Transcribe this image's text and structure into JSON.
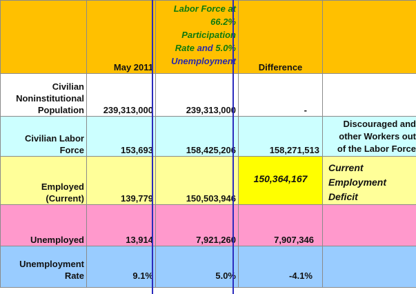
{
  "header": {
    "col_a": "",
    "col_b": "May 2011",
    "col_c_line1": "Labor Force at",
    "col_c_line2": "66.2%",
    "col_c_line3": "Participation",
    "col_c_line4a": "Rate",
    "col_c_line4b": "and",
    "col_c_line4c": "5.0%",
    "col_c_line5": "Unemployment",
    "col_d": "Difference",
    "col_e": ""
  },
  "rows": [
    {
      "label_lines": [
        "Civilian",
        "Noninstitutional",
        "Population"
      ],
      "may2011": "239,313,000",
      "scenario": "239,313,000",
      "difference": "-",
      "note": ""
    },
    {
      "label_lines": [
        "Civilian Labor",
        "Force"
      ],
      "may2011": "153,693",
      "scenario": "158,425,206",
      "difference": "158,271,513",
      "note_lines": [
        "Discouraged and",
        "other Workers out",
        "of the Labor Force"
      ]
    },
    {
      "label_lines": [
        "Employed",
        "(Current)"
      ],
      "may2011": "139,779",
      "scenario": "150,503,946",
      "difference": "150,364,167",
      "note_lines": [
        "Current",
        "Employment",
        "Deficit"
      ]
    },
    {
      "label_lines": [
        "Unemployed"
      ],
      "may2011": "13,914",
      "scenario": "7,921,260",
      "difference": "7,907,346",
      "note": ""
    },
    {
      "label_lines": [
        "Unemployment",
        "Rate"
      ],
      "may2011": "9.1%",
      "scenario": "5.0%",
      "difference": "-4.1%",
      "note": ""
    }
  ],
  "colors": {
    "header_bg": "#ffc000",
    "population_bg": "#ffffff",
    "labor_force_bg": "#ccffff",
    "employed_bg": "#ffff99",
    "deficit_highlight": "#ffff00",
    "unemployed_bg": "#ff99cc",
    "rate_bg": "#99ccff",
    "scenario_column_outline": "#2b2bbd",
    "scenario_header_green": "#0e7a0e",
    "scenario_header_blue": "#2a2aa8"
  }
}
